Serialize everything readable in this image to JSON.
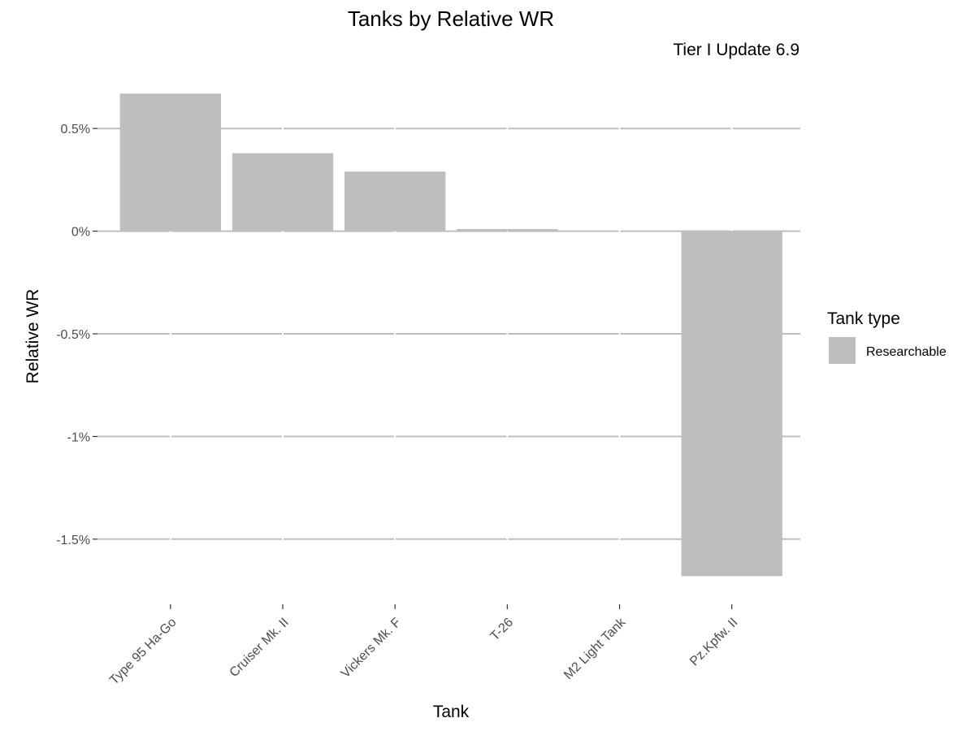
{
  "chart_data": {
    "type": "bar",
    "title": "Tanks by Relative WR",
    "subtitle": "Tier I Update 6.9",
    "xlabel": "Tank",
    "ylabel": "Relative WR",
    "categories": [
      "Type 95 Ha-Go",
      "Cruiser Mk. II",
      "Vickers Mk. F",
      "T-26",
      "M2 Light Tank",
      "Pz.Kpfw. II"
    ],
    "series": [
      {
        "name": "Researchable",
        "values": [
          0.67,
          0.38,
          0.29,
          0.01,
          0.0,
          -1.68
        ]
      }
    ],
    "ylim": [
      -1.75,
      0.75
    ],
    "yticks": [
      0.5,
      0,
      -0.5,
      -1,
      -1.5
    ],
    "ytick_labels": [
      "0.5%",
      "0%",
      "-0.5%",
      "-1%",
      "-1.5%"
    ],
    "grid": true,
    "legend": {
      "title": "Tank type",
      "position": "right",
      "entries": [
        "Researchable"
      ]
    },
    "colors": {
      "bar": "#bebebe",
      "grid": "#bdbdbd"
    }
  }
}
